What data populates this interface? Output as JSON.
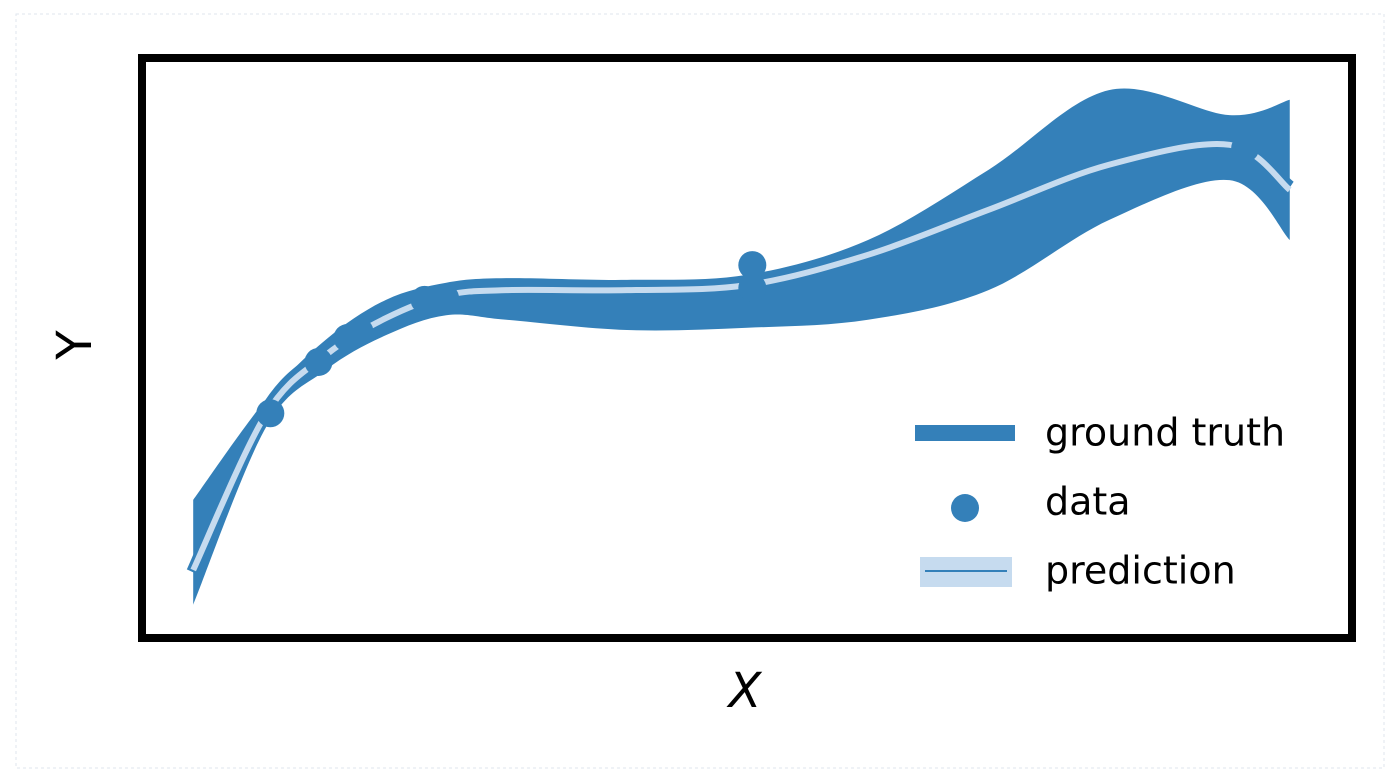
{
  "chart_data": {
    "type": "line",
    "xlabel": "X",
    "ylabel": "Y",
    "xlim": [
      0,
      10
    ],
    "ylim": [
      0,
      10
    ],
    "legend": "lower right",
    "x": [
      0.4,
      1.0,
      1.5,
      2.0,
      2.5,
      3.0,
      4.0,
      5.0,
      6.0,
      7.0,
      8.0,
      9.0,
      9.5
    ],
    "series": [
      {
        "name": "ground truth",
        "type": "line",
        "color": "#3480b9",
        "values": [
          1.1,
          3.9,
          4.95,
          5.6,
          6.0,
          6.1,
          6.1,
          6.1,
          6.6,
          7.4,
          8.2,
          8.55,
          7.85
        ]
      },
      {
        "name": "data",
        "type": "scatter",
        "color": "#3480b9",
        "x": [
          1.04,
          1.44,
          1.68,
          1.78,
          2.32,
          2.49,
          4.22,
          5.04,
          5.04,
          9.13
        ],
        "values": [
          3.89,
          4.79,
          5.21,
          5.32,
          5.88,
          5.91,
          5.67,
          6.49,
          6.09,
          8.54
        ]
      },
      {
        "name": "prediction",
        "type": "band",
        "color": "#3480b9",
        "line_color": "#c6dbef",
        "values": [
          1.14,
          3.86,
          4.91,
          5.56,
          5.96,
          6.05,
          6.05,
          6.14,
          6.67,
          7.46,
          8.25,
          8.6,
          7.81
        ],
        "upper": [
          2.37,
          4.12,
          5.18,
          5.88,
          6.18,
          6.26,
          6.23,
          6.32,
          6.93,
          8.16,
          9.56,
          9.12,
          9.39
        ],
        "lower": [
          0.53,
          3.63,
          4.65,
          5.26,
          5.61,
          5.53,
          5.35,
          5.39,
          5.53,
          6.05,
          7.28,
          7.98,
          6.93
        ]
      }
    ]
  }
}
